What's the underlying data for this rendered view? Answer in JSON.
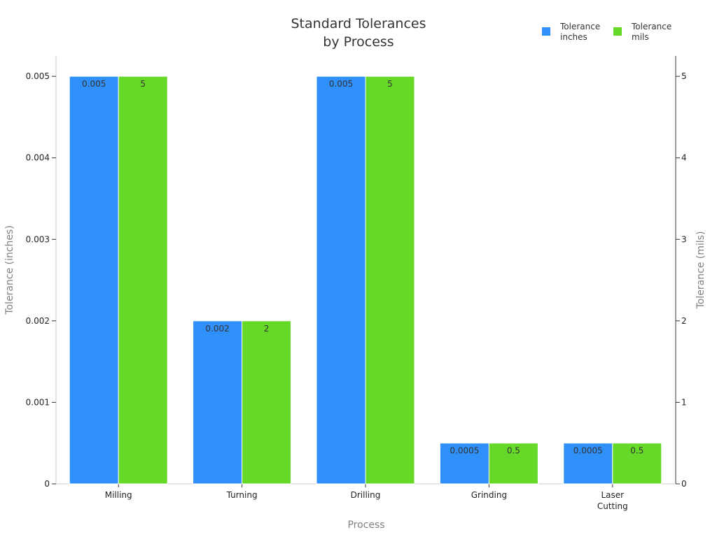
{
  "chart_data": {
    "type": "bar",
    "title_lines": [
      "Standard Tolerances",
      "by Process"
    ],
    "xlabel": "Process",
    "ylabel_left": "Tolerance (inches)",
    "ylabel_right": "Tolerance (mils)",
    "categories": [
      "Milling",
      "Turning",
      "Drilling",
      "Grinding",
      "Laser Cutting"
    ],
    "category_label_lines": [
      [
        "Milling"
      ],
      [
        "Turning"
      ],
      [
        "Drilling"
      ],
      [
        "Grinding"
      ],
      [
        "Laser",
        "Cutting"
      ]
    ],
    "series": [
      {
        "name": "Tolerance inches",
        "legend_lines": [
          "Tolerance",
          "inches"
        ],
        "axis": "left",
        "color": "#2e90f8",
        "values": [
          0.005,
          0.002,
          0.005,
          0.0005,
          0.0005
        ],
        "labels": [
          "0.005",
          "0.002",
          "0.005",
          "0.0005",
          "0.0005"
        ]
      },
      {
        "name": "Tolerance mils",
        "legend_lines": [
          "Tolerance",
          "mils"
        ],
        "axis": "right",
        "color": "#66d928",
        "values": [
          5,
          2,
          5,
          0.5,
          0.5
        ],
        "labels": [
          "5",
          "2",
          "5",
          "0.5",
          "0.5"
        ]
      }
    ],
    "ylim_left": [
      0,
      0.00525
    ],
    "yticks_left": [
      "0",
      "0.001",
      "0.002",
      "0.003",
      "0.004",
      "0.005"
    ],
    "ylim_right": [
      0,
      5.25
    ],
    "yticks_right": [
      "0",
      "1",
      "2",
      "3",
      "4",
      "5"
    ],
    "grid": false,
    "legend_position": "top-right"
  }
}
